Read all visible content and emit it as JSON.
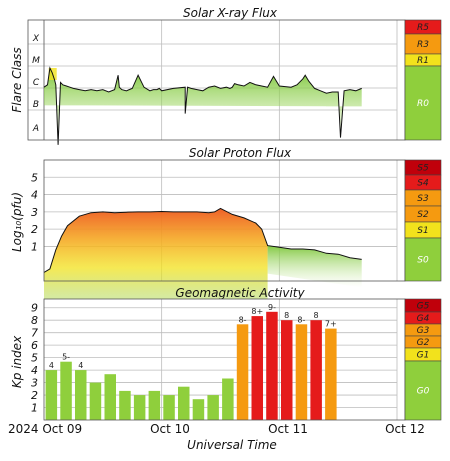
{
  "colors": {
    "green": "#8fcf3c",
    "yellow": "#f2e21c",
    "orange": "#f59a10",
    "red": "#e51b1b",
    "dark_red": "#c0000b",
    "scale_quiet": "#8fcf3c"
  },
  "x_axis": {
    "label": "Universal Time",
    "ticks": [
      "2024 Oct 09",
      "Oct 10",
      "Oct 11",
      "Oct 12"
    ]
  },
  "chart_data": [
    {
      "type": "line",
      "title": "Solar X-ray Flux",
      "ylabel": "Flare Class",
      "y_classes": [
        "A",
        "B",
        "C",
        "M",
        "X"
      ],
      "scale_labels": [
        "R5",
        "R3",
        "R1",
        "R0"
      ],
      "x_range_days": [
        0,
        3
      ],
      "y_range_log": [
        -8,
        -3
      ],
      "x_days": [
        0.0,
        0.03,
        0.05,
        0.07,
        0.09,
        0.1,
        0.12,
        0.14,
        0.16,
        0.19,
        0.22,
        0.25,
        0.3,
        0.35,
        0.4,
        0.45,
        0.5,
        0.55,
        0.6,
        0.63,
        0.64,
        0.66,
        0.7,
        0.75,
        0.8,
        0.85,
        0.9,
        0.93,
        0.96,
        0.98,
        1.0,
        1.1,
        1.2,
        1.2,
        1.22,
        1.25,
        1.3,
        1.35,
        1.4,
        1.45,
        1.5,
        1.55,
        1.58,
        1.6,
        1.62,
        1.65,
        1.7,
        1.75,
        1.8,
        1.85,
        1.9,
        1.95,
        2.0,
        2.1,
        2.15,
        2.2,
        2.22,
        2.25,
        2.3,
        2.35,
        2.4,
        2.45,
        2.5,
        2.52,
        2.55,
        2.6,
        2.65,
        2.7
      ],
      "flux_log": [
        -5.8,
        -5.7,
        -5.0,
        -5.2,
        -5.5,
        -5.7,
        -8.2,
        -5.6,
        -5.7,
        -5.75,
        -5.8,
        -5.85,
        -5.9,
        -5.95,
        -5.9,
        -5.95,
        -5.9,
        -6.0,
        -5.9,
        -5.3,
        -5.8,
        -5.9,
        -5.95,
        -5.85,
        -5.3,
        -5.8,
        -5.95,
        -5.9,
        -5.9,
        -5.85,
        -5.95,
        -5.85,
        -5.8,
        -6.9,
        -5.8,
        -5.85,
        -5.9,
        -5.95,
        -5.8,
        -5.75,
        -5.85,
        -5.8,
        -5.85,
        -5.8,
        -5.65,
        -5.7,
        -5.75,
        -5.6,
        -5.7,
        -5.75,
        -5.8,
        -5.35,
        -5.75,
        -5.8,
        -5.7,
        -5.45,
        -5.3,
        -5.55,
        -5.85,
        -5.95,
        -6.05,
        -6.0,
        -6.0,
        -7.9,
        -5.95,
        -5.9,
        -5.95,
        -5.85
      ]
    },
    {
      "type": "line",
      "title": "Solar Proton Flux",
      "ylabel": "Log₁₀(pfu)",
      "y_ticks": [
        1,
        2,
        3,
        4,
        5
      ],
      "y_range": [
        -1,
        6
      ],
      "scale_labels": [
        "S5",
        "S4",
        "S3",
        "S2",
        "S1",
        "S0"
      ],
      "x_days": [
        0.0,
        0.05,
        0.1,
        0.15,
        0.2,
        0.3,
        0.4,
        0.5,
        0.6,
        0.7,
        0.8,
        0.9,
        1.0,
        1.1,
        1.2,
        1.3,
        1.4,
        1.45,
        1.5,
        1.6,
        1.7,
        1.8,
        1.85,
        1.9,
        2.0,
        2.1,
        2.2,
        2.3,
        2.4,
        2.5,
        2.6,
        2.7
      ],
      "flux_log": [
        -0.5,
        -0.3,
        0.8,
        1.6,
        2.2,
        2.75,
        2.95,
        3.0,
        2.95,
        2.98,
        3.0,
        3.0,
        3.02,
        3.0,
        3.0,
        3.0,
        2.95,
        3.0,
        3.2,
        2.85,
        2.65,
        2.35,
        2.0,
        1.05,
        0.95,
        0.85,
        0.85,
        0.8,
        0.6,
        0.55,
        0.35,
        0.25
      ]
    },
    {
      "type": "bar",
      "title": "Geomagnetic Activity",
      "ylabel": "Kp index",
      "y_ticks": [
        1,
        2,
        3,
        4,
        5,
        6,
        7,
        8,
        9
      ],
      "y_range": [
        0,
        9.7
      ],
      "scale_labels": [
        "G5",
        "G4",
        "G3",
        "G2",
        "G1",
        "G0"
      ],
      "values": [
        4,
        4.67,
        4,
        3,
        3.67,
        2.33,
        2,
        2.33,
        2,
        2.67,
        1.67,
        2,
        3.33,
        7.67,
        8.33,
        8.67,
        8,
        7.67,
        8,
        7.33
      ],
      "labels": [
        "4",
        "5-",
        "4",
        "",
        "",
        "",
        "",
        "",
        "",
        "",
        "",
        "",
        "",
        "8-",
        "8+",
        "9-",
        "8",
        "8-",
        "8",
        "7+"
      ]
    }
  ]
}
